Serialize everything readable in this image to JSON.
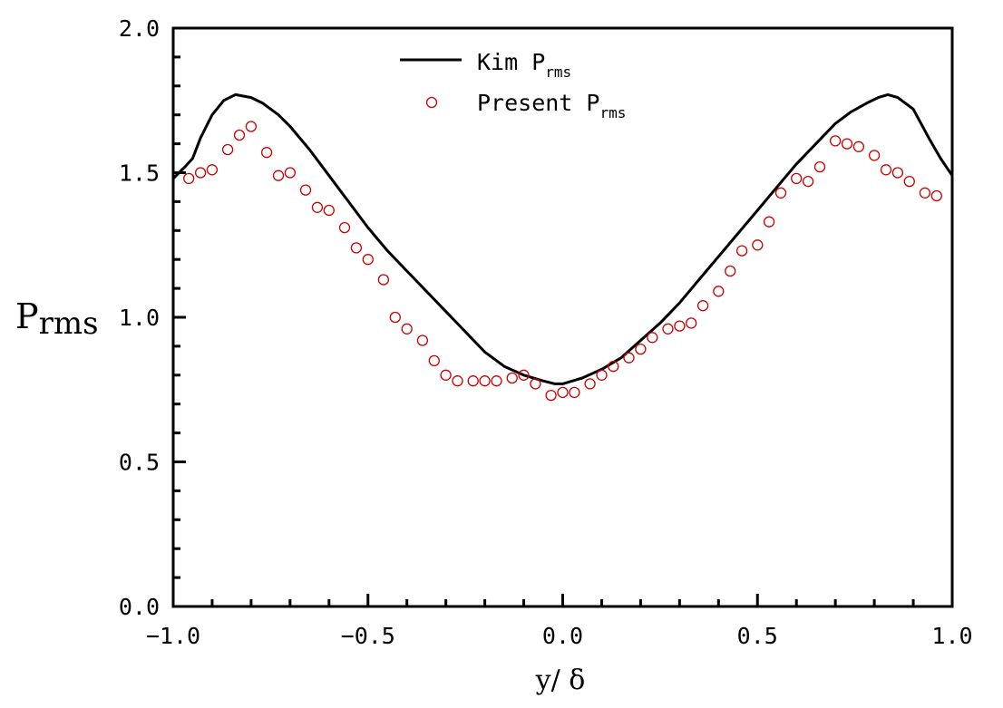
{
  "chart_data": {
    "type": "line",
    "title": "",
    "xlabel": "y/ δ",
    "ylabel_main": "P",
    "ylabel_sub": "rms",
    "xlim": [
      -1.0,
      1.0
    ],
    "ylim": [
      0.0,
      2.0
    ],
    "x_ticks": [
      -1.0,
      -0.5,
      0.0,
      0.5,
      1.0
    ],
    "x_tick_labels": [
      "−1.0",
      "−0.5",
      "0.0",
      "0.5",
      "1.0"
    ],
    "y_ticks": [
      0.0,
      0.5,
      1.0,
      1.5,
      2.0
    ],
    "y_tick_labels": [
      "0.0",
      "0.5",
      "1.0",
      "1.5",
      "2.0"
    ],
    "legend_position": "top-center",
    "colors": {
      "kim": "#000000",
      "present": "#cc0000"
    },
    "series": [
      {
        "name": "Kim P",
        "name_sub": "rms",
        "style": "line",
        "x": [
          -1.0,
          -0.97,
          -0.95,
          -0.93,
          -0.9,
          -0.87,
          -0.84,
          -0.82,
          -0.8,
          -0.77,
          -0.73,
          -0.7,
          -0.65,
          -0.6,
          -0.55,
          -0.5,
          -0.45,
          -0.4,
          -0.35,
          -0.3,
          -0.25,
          -0.2,
          -0.15,
          -0.1,
          -0.05,
          -0.02,
          0.0,
          0.05,
          0.1,
          0.15,
          0.2,
          0.25,
          0.3,
          0.35,
          0.4,
          0.45,
          0.5,
          0.55,
          0.6,
          0.65,
          0.7,
          0.74,
          0.78,
          0.81,
          0.835,
          0.86,
          0.9,
          0.94,
          0.97,
          1.0
        ],
        "y": [
          1.48,
          1.52,
          1.55,
          1.62,
          1.7,
          1.75,
          1.77,
          1.765,
          1.76,
          1.74,
          1.7,
          1.66,
          1.58,
          1.49,
          1.4,
          1.31,
          1.23,
          1.16,
          1.09,
          1.02,
          0.95,
          0.88,
          0.83,
          0.8,
          0.78,
          0.77,
          0.77,
          0.79,
          0.82,
          0.86,
          0.92,
          0.98,
          1.05,
          1.13,
          1.21,
          1.29,
          1.37,
          1.45,
          1.53,
          1.6,
          1.67,
          1.71,
          1.74,
          1.76,
          1.77,
          1.76,
          1.72,
          1.62,
          1.55,
          1.49
        ]
      },
      {
        "name": "Present P",
        "name_sub": "rms",
        "style": "open-circle",
        "x": [
          -0.96,
          -0.93,
          -0.9,
          -0.86,
          -0.83,
          -0.8,
          -0.76,
          -0.73,
          -0.7,
          -0.66,
          -0.63,
          -0.6,
          -0.56,
          -0.53,
          -0.5,
          -0.46,
          -0.43,
          -0.4,
          -0.36,
          -0.33,
          -0.3,
          -0.27,
          -0.23,
          -0.2,
          -0.17,
          -0.13,
          -0.1,
          -0.07,
          -0.03,
          0.0,
          0.03,
          0.07,
          0.1,
          0.13,
          0.17,
          0.2,
          0.23,
          0.27,
          0.3,
          0.33,
          0.36,
          0.4,
          0.43,
          0.46,
          0.5,
          0.53,
          0.56,
          0.6,
          0.63,
          0.66,
          0.7,
          0.73,
          0.76,
          0.8,
          0.83,
          0.86,
          0.89,
          0.93,
          0.96
        ],
        "y": [
          1.48,
          1.5,
          1.51,
          1.58,
          1.63,
          1.66,
          1.57,
          1.49,
          1.5,
          1.44,
          1.38,
          1.37,
          1.31,
          1.24,
          1.2,
          1.13,
          1.0,
          0.96,
          0.92,
          0.85,
          0.8,
          0.78,
          0.78,
          0.78,
          0.78,
          0.79,
          0.8,
          0.77,
          0.73,
          0.74,
          0.74,
          0.77,
          0.8,
          0.83,
          0.86,
          0.89,
          0.93,
          0.96,
          0.97,
          0.98,
          1.04,
          1.09,
          1.16,
          1.23,
          1.25,
          1.33,
          1.43,
          1.48,
          1.47,
          1.52,
          1.61,
          1.6,
          1.59,
          1.56,
          1.51,
          1.5,
          1.47,
          1.43,
          1.42
        ]
      }
    ]
  }
}
